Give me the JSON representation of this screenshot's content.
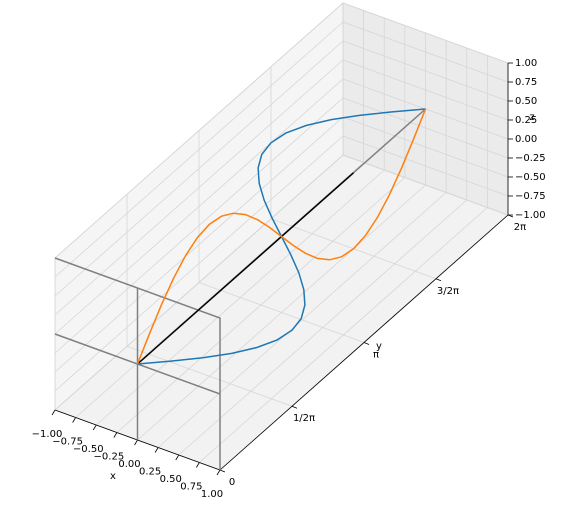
{
  "chart_data": {
    "type": "line3d",
    "x_label": "x",
    "y_label": "y",
    "z_label": "z",
    "xlim": [
      -1,
      1
    ],
    "ylim": [
      0,
      6.283
    ],
    "zlim": [
      -1,
      1
    ],
    "xticks": [
      {
        "value": -1,
        "label": "−1.00"
      },
      {
        "value": -0.75,
        "label": "−0.75"
      },
      {
        "value": -0.5,
        "label": "−0.50"
      },
      {
        "value": -0.25,
        "label": "−0.25"
      },
      {
        "value": 0,
        "label": "0.00"
      },
      {
        "value": 0.25,
        "label": "0.25"
      },
      {
        "value": 0.5,
        "label": "0.50"
      },
      {
        "value": 0.75,
        "label": "0.75"
      },
      {
        "value": 1,
        "label": "1.00"
      }
    ],
    "yticks": [
      0,
      {
        "value": 1.571,
        "label": "1/2π"
      },
      {
        "value": 3.142,
        "label": "π"
      },
      {
        "value": 4.712,
        "label": "3/2π"
      },
      {
        "value": 6.283,
        "label": "2π"
      }
    ],
    "zticks": [
      {
        "value": -1,
        "label": "−1.00"
      },
      {
        "value": -0.75,
        "label": "−0.75"
      },
      {
        "value": -0.5,
        "label": "−0.50"
      },
      {
        "value": -0.25,
        "label": "−0.25"
      },
      {
        "value": 0,
        "label": "0.00"
      },
      {
        "value": 0.25,
        "label": "0.25"
      },
      {
        "value": 0.5,
        "label": "0.50"
      },
      {
        "value": 0.75,
        "label": "0.75"
      },
      {
        "value": 1,
        "label": "1.00"
      }
    ],
    "grid": true,
    "series": [
      {
        "color": "#808080",
        "x": [
          -1,
          1,
          1,
          null,
          -1,
          1,
          null,
          0,
          0
        ],
        "y": [
          0,
          0,
          0,
          null,
          0,
          0,
          null,
          0,
          0
        ],
        "z": [
          1,
          1,
          -1,
          null,
          0,
          0,
          null,
          1,
          -1
        ]
      },
      {
        "color": "#808080",
        "x": [
          0,
          0
        ],
        "y": [
          0,
          6.283
        ],
        "z": [
          0,
          0
        ]
      },
      {
        "color": "#000000",
        "x": [
          0,
          0
        ],
        "y": [
          0,
          4.712
        ],
        "z": [
          0,
          0
        ]
      },
      {
        "color": "#1f77b4",
        "x": [
          0,
          0.259,
          0.5,
          0.707,
          0.866,
          0.966,
          1,
          0.966,
          0.866,
          0.707,
          0.5,
          0.259,
          0,
          -0.259,
          -0.5,
          -0.707,
          -0.866,
          -0.966,
          -1,
          -0.966,
          -0.866,
          -0.707,
          -0.5,
          -0.259,
          0
        ],
        "y": [
          0,
          0.262,
          0.524,
          0.785,
          1.047,
          1.309,
          1.571,
          1.833,
          2.094,
          2.356,
          2.618,
          2.88,
          3.142,
          3.403,
          3.665,
          3.927,
          4.189,
          4.451,
          4.712,
          4.974,
          5.236,
          5.498,
          5.76,
          6.021,
          6.283
        ],
        "z": [
          0,
          0,
          0,
          0,
          0,
          0,
          0,
          0,
          0,
          0,
          0,
          0,
          0,
          0,
          0,
          0,
          0,
          0,
          0,
          0,
          0,
          0,
          0,
          0,
          0
        ]
      },
      {
        "color": "#ff7f0e",
        "x": [
          0,
          0,
          0,
          0,
          0,
          0,
          0,
          0,
          0,
          0,
          0,
          0,
          0,
          0,
          0,
          0,
          0,
          0,
          0,
          0,
          0,
          0,
          0,
          0,
          0
        ],
        "y": [
          0,
          0.262,
          0.524,
          0.785,
          1.047,
          1.309,
          1.571,
          1.833,
          2.094,
          2.356,
          2.618,
          2.88,
          3.142,
          3.403,
          3.665,
          3.927,
          4.189,
          4.451,
          4.712,
          4.974,
          5.236,
          5.498,
          5.76,
          6.021,
          6.283
        ],
        "z": [
          0,
          0.259,
          0.5,
          0.707,
          0.866,
          0.966,
          1,
          0.966,
          0.866,
          0.707,
          0.5,
          0.259,
          0,
          -0.259,
          -0.5,
          -0.707,
          -0.866,
          -0.966,
          -1,
          -0.966,
          -0.866,
          -0.707,
          -0.5,
          -0.259,
          0
        ]
      }
    ]
  }
}
